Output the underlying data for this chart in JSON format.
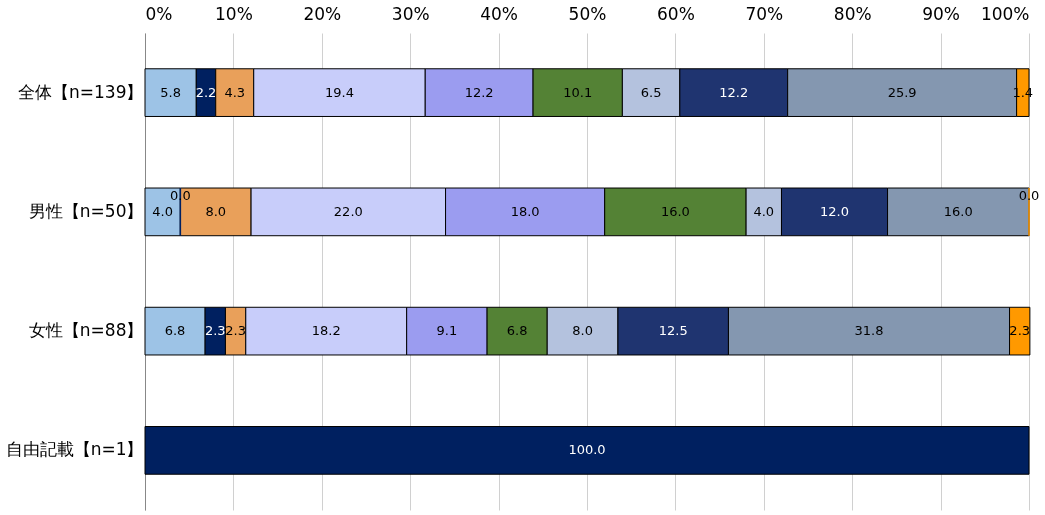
{
  "chart_data": {
    "type": "bar",
    "orientation": "horizontal",
    "stacked": true,
    "legend": false,
    "grid": "x",
    "categories": [
      "全体【n=139】",
      "男性【n=50】",
      "女性【n=88】",
      "自由記載【n=1】"
    ],
    "xlim": [
      0,
      100
    ],
    "xticks": [
      {
        "value": 0,
        "label": "0%"
      },
      {
        "value": 10,
        "label": "10%"
      },
      {
        "value": 20,
        "label": "20%"
      },
      {
        "value": 30,
        "label": "30%"
      },
      {
        "value": 40,
        "label": "40%"
      },
      {
        "value": 50,
        "label": "50%"
      },
      {
        "value": 60,
        "label": "60%"
      },
      {
        "value": 70,
        "label": "70%"
      },
      {
        "value": 80,
        "label": "80%"
      },
      {
        "value": 90,
        "label": "90%"
      },
      {
        "value": 100,
        "label": "100%"
      }
    ],
    "series": [
      {
        "color": "#9dc3e6",
        "values": [
          5.8,
          4.0,
          6.8,
          null
        ],
        "value_labels": [
          "5.8",
          "4.0",
          "6.8",
          null
        ]
      },
      {
        "color": "#002060",
        "values": [
          2.2,
          0.0,
          2.3,
          100.0
        ],
        "value_labels": [
          "2.2",
          "0.0",
          "2.3",
          "100.0"
        ]
      },
      {
        "color": "#e9a05a",
        "values": [
          4.3,
          8.0,
          2.3,
          null
        ],
        "value_labels": [
          "4.3",
          "8.0",
          "2.3",
          null
        ]
      },
      {
        "color": "#c8cdfa",
        "values": [
          19.4,
          22.0,
          18.2,
          null
        ],
        "value_labels": [
          "19.4",
          "22.0",
          "18.2",
          null
        ]
      },
      {
        "color": "#9b9cf0",
        "values": [
          12.2,
          18.0,
          9.1,
          null
        ],
        "value_labels": [
          "12.2",
          "18.0",
          "9.1",
          null
        ]
      },
      {
        "color": "#548235",
        "values": [
          10.1,
          16.0,
          6.8,
          null
        ],
        "value_labels": [
          "10.1",
          "16.0",
          "6.8",
          null
        ]
      },
      {
        "color": "#b4c2de",
        "values": [
          6.5,
          4.0,
          8.0,
          null
        ],
        "value_labels": [
          "6.5",
          "4.0",
          "8.0",
          null
        ]
      },
      {
        "color": "#1f3470",
        "values": [
          12.2,
          12.0,
          12.5,
          null
        ],
        "value_labels": [
          "12.2",
          "12.0",
          "12.5",
          null
        ]
      },
      {
        "color": "#8497b0",
        "values": [
          25.9,
          16.0,
          31.8,
          null
        ],
        "value_labels": [
          "25.9",
          "16.0",
          "31.8",
          null
        ]
      },
      {
        "color": "#ff9900",
        "values": [
          1.4,
          0.0,
          2.3,
          null
        ],
        "value_labels": [
          "1.4",
          "0.0",
          "2.3",
          null
        ]
      }
    ]
  }
}
